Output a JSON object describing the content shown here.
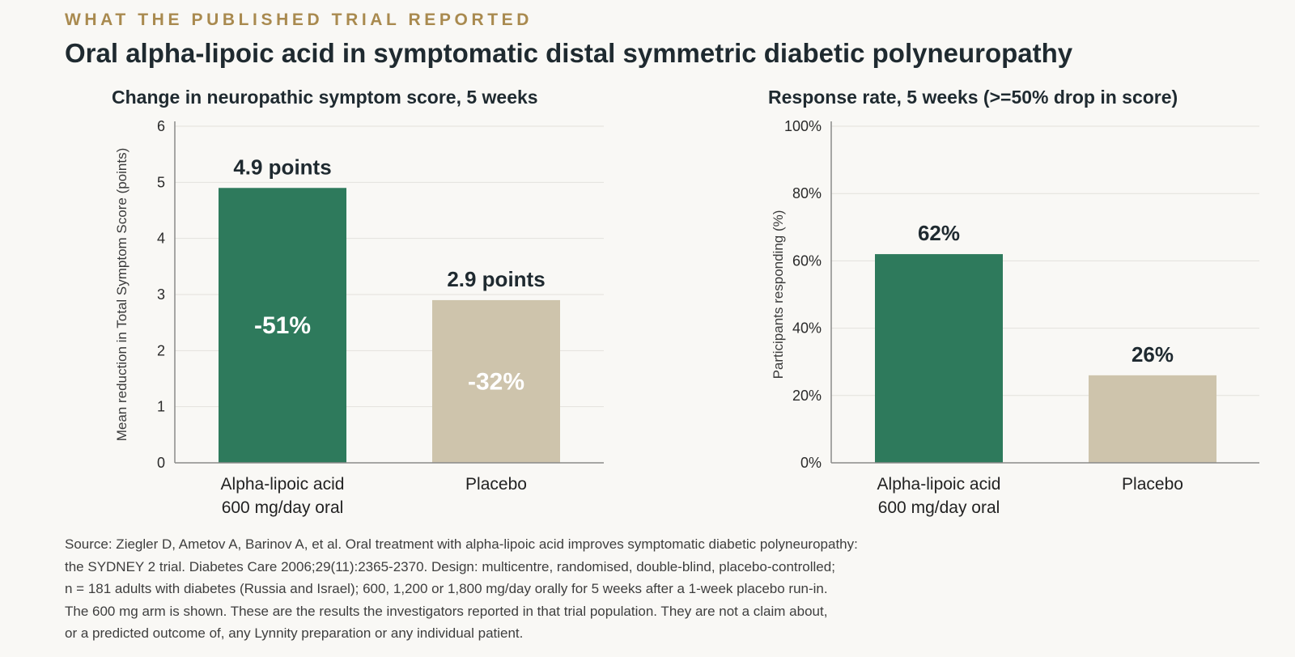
{
  "header": {
    "eyebrow": "WHAT THE PUBLISHED TRIAL REPORTED",
    "title": "Oral alpha-lipoic acid in symptomatic distal symmetric diabetic polyneuropathy"
  },
  "colors": {
    "treatment": "#2e7a5c",
    "placebo": "#cec4ac",
    "eyebrow": "#a98a4f",
    "text": "#1f2a30",
    "grid": "#e3e1dc",
    "axis": "#8a8a8a"
  },
  "chart_data": [
    {
      "type": "bar",
      "title": "Change in neuropathic symptom score, 5 weeks",
      "ylabel": "Mean reduction in Total Symptom Score (points)",
      "xlabel": "",
      "ylim": [
        0,
        6
      ],
      "yticks": [
        0,
        1,
        2,
        3,
        4,
        5,
        6
      ],
      "ytick_labels": [
        "0",
        "1",
        "2",
        "3",
        "4",
        "5",
        "6"
      ],
      "grid": true,
      "categories": [
        [
          "Alpha-lipoic acid",
          "600 mg/day oral"
        ],
        [
          "Placebo"
        ]
      ],
      "values": [
        4.9,
        2.9
      ],
      "value_labels": [
        "4.9 points",
        "2.9 points"
      ],
      "inner_labels": [
        "-51%",
        "-32%"
      ]
    },
    {
      "type": "bar",
      "title": "Response rate, 5 weeks (>=50% drop in score)",
      "ylabel": "Participants responding (%)",
      "xlabel": "",
      "ylim": [
        0,
        100
      ],
      "yticks": [
        0,
        20,
        40,
        60,
        80,
        100
      ],
      "ytick_labels": [
        "0%",
        "20%",
        "40%",
        "60%",
        "80%",
        "100%"
      ],
      "grid": true,
      "categories": [
        [
          "Alpha-lipoic acid",
          "600 mg/day oral"
        ],
        [
          "Placebo"
        ]
      ],
      "values": [
        62,
        26
      ],
      "value_labels": [
        "62%",
        "26%"
      ],
      "inner_labels": []
    }
  ],
  "source": {
    "lines": [
      "Source: Ziegler D, Ametov A, Barinov A, et al. Oral treatment with alpha-lipoic acid improves symptomatic diabetic polyneuropathy:",
      "the SYDNEY 2 trial. Diabetes Care 2006;29(11):2365-2370.   Design: multicentre, randomised, double-blind, placebo-controlled;",
      "n = 181 adults with diabetes (Russia and Israel); 600, 1,200 or 1,800 mg/day orally for 5 weeks after a 1-week placebo run-in.",
      "The 600 mg arm is shown. These are the results the investigators reported in that trial population. They are not a claim about,",
      "or a predicted outcome of, any Lynnity preparation or any individual patient."
    ]
  }
}
